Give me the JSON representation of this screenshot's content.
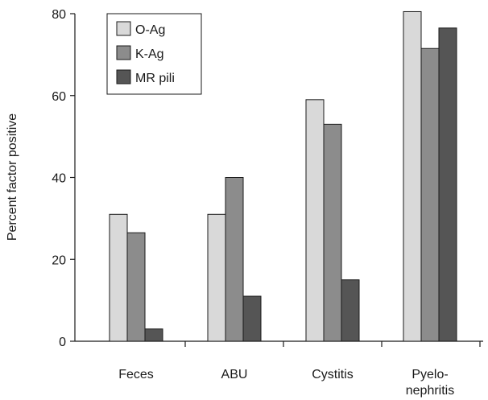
{
  "chart_data": {
    "type": "bar",
    "title": "",
    "xlabel": "",
    "ylabel": "Percent factor positive",
    "ylim": [
      0,
      80
    ],
    "yticks": [
      0,
      20,
      40,
      60,
      80
    ],
    "categories": [
      [
        "Feces"
      ],
      [
        "ABU"
      ],
      [
        "Cystitis"
      ],
      [
        "Pyelo-",
        "nephritis"
      ]
    ],
    "series": [
      {
        "name": "O-Ag",
        "color": "#d9d9d9",
        "values": [
          31,
          31,
          59,
          80.5
        ]
      },
      {
        "name": "K-Ag",
        "color": "#8c8c8c",
        "values": [
          26.5,
          40,
          53,
          71.5
        ]
      },
      {
        "name": "MR pili",
        "color": "#555555",
        "values": [
          3,
          11,
          15,
          76.5
        ]
      }
    ],
    "legend": {
      "position": "top-left"
    },
    "grid": false
  }
}
